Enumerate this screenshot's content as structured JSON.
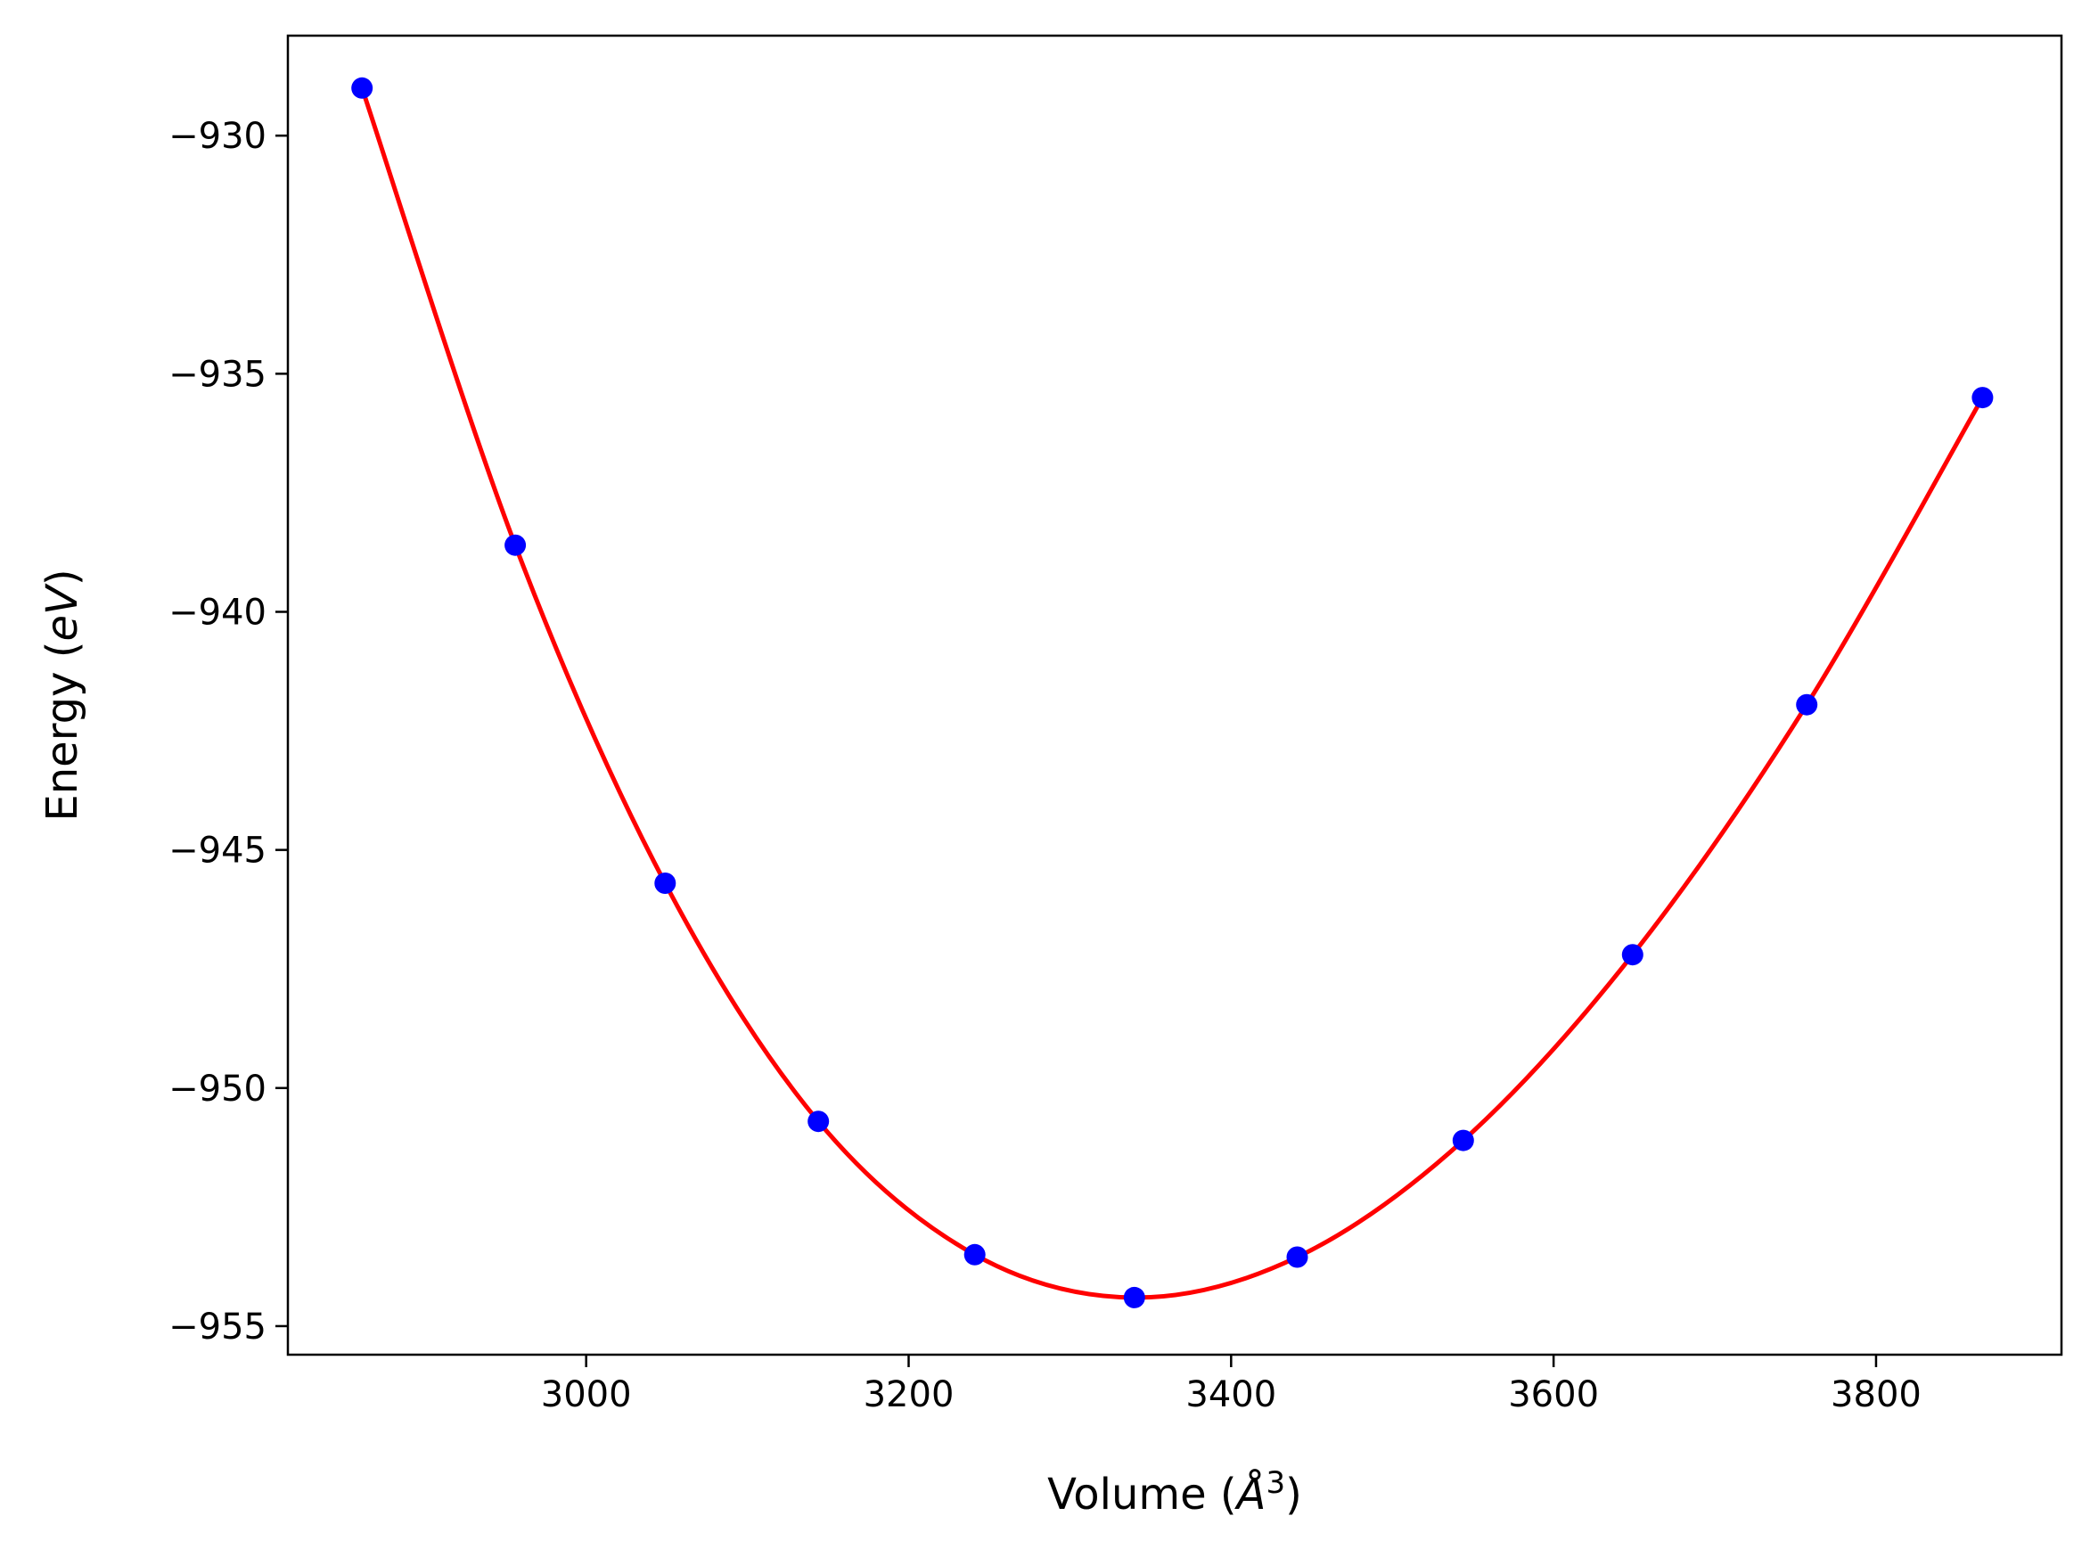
{
  "chart_data": {
    "type": "scatter",
    "xlabel": {
      "prefix": "Volume (",
      "symbol": "Å",
      "sup": "3",
      "suffix": ")"
    },
    "ylabel": {
      "prefix": "Energy (",
      "unit": "eV",
      "suffix": ")"
    },
    "xlim": [
      2815,
      3915
    ],
    "ylim": [
      -955.6,
      -927.9
    ],
    "xticks": [
      3000,
      3200,
      3400,
      3600,
      3800
    ],
    "xtick_labels": [
      "3000",
      "3200",
      "3400",
      "3600",
      "3800"
    ],
    "yticks": [
      -930,
      -935,
      -940,
      -945,
      -950,
      -955
    ],
    "ytick_labels": [
      "−930",
      "−935",
      "−940",
      "−945",
      "−950",
      "−955"
    ],
    "grid": false,
    "series": [
      {
        "kind": "points",
        "color": "#0000ff",
        "x": [
          2861,
          2956,
          3049,
          3144,
          3241,
          3340,
          3441,
          3544,
          3649,
          3757,
          3866
        ],
        "y": [
          -929.0,
          -938.6,
          -945.7,
          -950.7,
          -953.5,
          -954.4,
          -953.55,
          -951.1,
          -947.2,
          -941.95,
          -935.5
        ]
      },
      {
        "kind": "fit-curve",
        "color": "#ff0000"
      }
    ]
  }
}
